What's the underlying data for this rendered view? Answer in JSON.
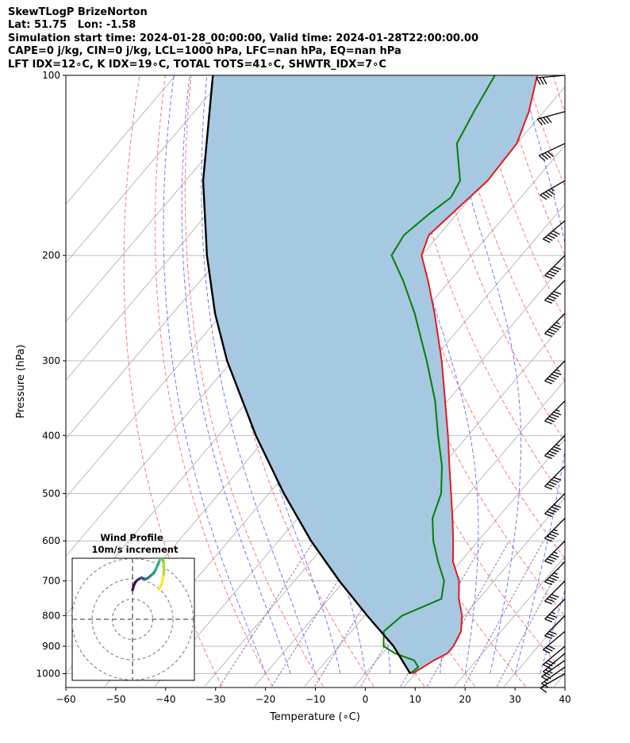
{
  "header": {
    "line1": "SkewTLogP BrizeNorton",
    "line2": "Lat: 51.75   Lon: -1.58",
    "line3": "Simulation start time: 2024-01-28_00:00:00, Valid time: 2024-01-28T22:00:00.00",
    "line4": "CAPE=0 j/kg, CIN=0 j/kg, LCL=1000 hPa, LFC=nan hPa, EQ=nan hPa",
    "line5": "LFT IDX=12∘C, K IDX=19∘C, TOTAL TOTS=41∘C, SHWTR_IDX=7∘C"
  },
  "chart_data": {
    "type": "line",
    "xlabel": "Temperature (∘C)",
    "ylabel": "Pressure (hPa)",
    "xlim": [
      -60,
      40
    ],
    "ylim": [
      1050,
      100
    ],
    "y_scale": "log",
    "x_ticks": [
      -60,
      -50,
      -40,
      -30,
      -20,
      -10,
      0,
      10,
      20,
      30,
      40
    ],
    "x_tick_labels": [
      "−60",
      "−50",
      "−40",
      "−30",
      "−20",
      "−10",
      "0",
      "10",
      "20",
      "30",
      "40"
    ],
    "y_ticks": [
      1000,
      900,
      800,
      700,
      600,
      500,
      400,
      300,
      200,
      100
    ],
    "y_tick_labels": [
      "1000",
      "900",
      "800",
      "700",
      "600",
      "500",
      "400",
      "300",
      "200",
      "100"
    ],
    "grid": true,
    "skew": true,
    "colors": {
      "temperature": "#e41a1c",
      "dewpoint": "#008000",
      "parcel": "#000000",
      "shade": "#a6c8e0",
      "dry_adiabat": "#ff6b6b",
      "moist_adiabat": "#5b6cff",
      "mixing_ratio": "#9b59b6",
      "isotherm": "#aaaaaa"
    },
    "series": [
      {
        "key": "temperature",
        "pressure": [
          1000,
          975,
          950,
          925,
          900,
          850,
          800,
          750,
          700,
          650,
          600,
          550,
          500,
          450,
          400,
          350,
          300,
          250,
          220,
          200,
          185,
          170,
          150,
          130,
          115,
          100
        ],
        "temperature": [
          9.4,
          10.5,
          11.5,
          13.0,
          13.0,
          12.0,
          9.5,
          6.0,
          3.0,
          -1.5,
          -5.0,
          -9.0,
          -13.5,
          -18.5,
          -24.0,
          -30.5,
          -38.0,
          -47.5,
          -54.5,
          -60.0,
          -62.0,
          -61.0,
          -59.5,
          -60.0,
          -63.0,
          -67.5
        ]
      },
      {
        "key": "dewpoint",
        "pressure": [
          1000,
          975,
          950,
          925,
          900,
          850,
          800,
          750,
          700,
          650,
          600,
          550,
          500,
          450,
          400,
          350,
          300,
          250,
          220,
          200,
          185,
          170,
          160,
          150,
          130,
          115,
          100
        ],
        "temperature": [
          9.0,
          9.5,
          7.5,
          2.5,
          -1.0,
          -3.5,
          -2.5,
          2.5,
          0.0,
          -4.5,
          -9.0,
          -13.0,
          -15.5,
          -20.0,
          -26.0,
          -32.5,
          -41.0,
          -51.5,
          -59.5,
          -66.0,
          -67.0,
          -65.5,
          -64.0,
          -65.0,
          -72.0,
          -74.0,
          -76.0
        ]
      }
    ],
    "parcel": {
      "pressure": [
        1000,
        900,
        800,
        700,
        600,
        500,
        400,
        300,
        250,
        200,
        150,
        100
      ],
      "temperature": [
        9.0,
        1.0,
        -9.5,
        -21.0,
        -33.5,
        -47.0,
        -62.5,
        -81.0,
        -91.5,
        -103.0,
        -116.5,
        -132.5
      ]
    },
    "wind_barbs": {
      "speed_unit": "knots",
      "pressure": [
        1000,
        975,
        950,
        925,
        900,
        850,
        800,
        750,
        700,
        650,
        600,
        550,
        500,
        450,
        400,
        350,
        300,
        250,
        220,
        200,
        175,
        150,
        130,
        115,
        100
      ],
      "speed": [
        10,
        15,
        20,
        25,
        30,
        30,
        30,
        35,
        40,
        45,
        45,
        45,
        50,
        50,
        55,
        55,
        55,
        55,
        50,
        50,
        50,
        45,
        40,
        40,
        30
      ],
      "direction": [
        240,
        235,
        235,
        230,
        230,
        230,
        225,
        225,
        225,
        225,
        225,
        225,
        225,
        225,
        225,
        225,
        225,
        225,
        225,
        225,
        230,
        240,
        245,
        255,
        265
      ]
    }
  },
  "inset": {
    "title_line1": "Wind Profile",
    "title_line2": "10m/s increment",
    "rings": 3,
    "hodograph_u": [
      0.0,
      0.6,
      1.4,
      2.4,
      3.4,
      4.4,
      5.4,
      6.4,
      7.6,
      9.0,
      10.4,
      11.4,
      12.4,
      13.6,
      14.6,
      15.4,
      15.6,
      15.2,
      14.4,
      13.0
    ],
    "hodograph_v": [
      14.5,
      16.6,
      18.4,
      19.4,
      20.0,
      20.6,
      20.2,
      19.8,
      20.4,
      21.6,
      22.8,
      24.4,
      26.8,
      29.6,
      30.6,
      28.0,
      24.4,
      21.0,
      17.4,
      14.8
    ]
  }
}
